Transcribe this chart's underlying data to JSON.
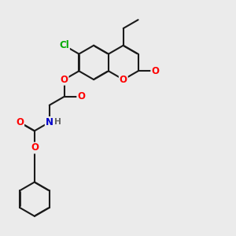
{
  "bg_color": "#ebebeb",
  "bond_color": "#1a1a1a",
  "bond_width": 1.5,
  "atom_colors": {
    "O": "#ff0000",
    "N": "#0000cc",
    "Cl": "#00aa00",
    "H": "#666666",
    "C": "#1a1a1a"
  },
  "font_size": 8.5
}
